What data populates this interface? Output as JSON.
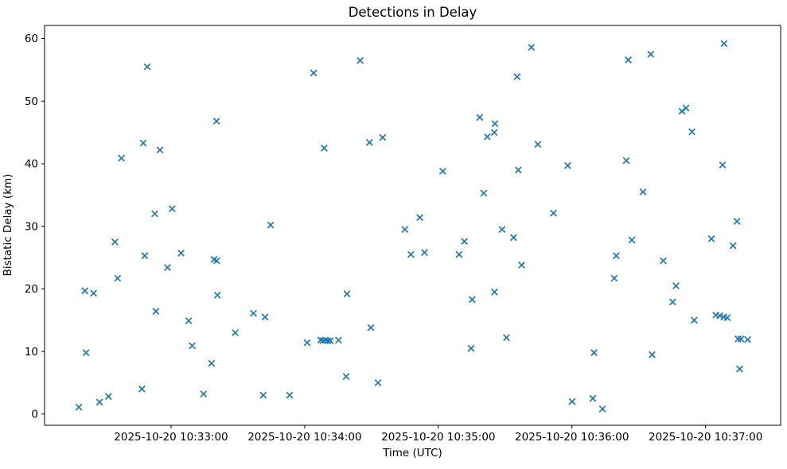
{
  "chart_data": {
    "type": "scatter",
    "title": "Detections in Delay",
    "xlabel": "Time (UTC)",
    "ylabel": "Bistatic Delay (km)",
    "marker": "x",
    "marker_color": "#1f77b4",
    "background_color": "#ffffff",
    "grid": false,
    "legend_position": "none",
    "x_axis": {
      "base_time": "2025-10-20 10:32:00",
      "unit": "seconds after base_time",
      "range": [
        3.2,
        333.7
      ],
      "ticks": [
        60,
        120,
        180,
        240,
        300
      ],
      "tick_labels": [
        "2025-10-20 10:33:00",
        "2025-10-20 10:34:00",
        "2025-10-20 10:35:00",
        "2025-10-20 10:36:00",
        "2025-10-20 10:37:00"
      ]
    },
    "y_axis": {
      "range": [
        -1.8,
        62.1
      ],
      "ticks": [
        0,
        10,
        20,
        30,
        40,
        50,
        60
      ],
      "tick_labels": [
        "0",
        "10",
        "20",
        "30",
        "40",
        "50",
        "60"
      ]
    },
    "points": [
      [
        49.3,
        55.5
      ],
      [
        80.4,
        46.8
      ],
      [
        47.5,
        43.3
      ],
      [
        55.0,
        42.2
      ],
      [
        37.7,
        40.9
      ],
      [
        52.7,
        32.0
      ],
      [
        60.5,
        32.8
      ],
      [
        104.7,
        30.2
      ],
      [
        221.8,
        58.6
      ],
      [
        144.9,
        56.5
      ],
      [
        124.0,
        54.5
      ],
      [
        215.4,
        53.9
      ],
      [
        198.6,
        47.4
      ],
      [
        205.4,
        46.4
      ],
      [
        205.1,
        45.0
      ],
      [
        202.0,
        44.3
      ],
      [
        224.7,
        43.1
      ],
      [
        155.0,
        44.2
      ],
      [
        149.1,
        43.4
      ],
      [
        128.8,
        42.5
      ],
      [
        215.9,
        39.0
      ],
      [
        182.0,
        38.8
      ],
      [
        200.4,
        35.3
      ],
      [
        171.7,
        31.4
      ],
      [
        165.0,
        29.5
      ],
      [
        208.6,
        29.5
      ],
      [
        308.3,
        59.2
      ],
      [
        275.4,
        57.5
      ],
      [
        265.3,
        56.6
      ],
      [
        289.4,
        48.4
      ],
      [
        291.2,
        48.9
      ],
      [
        293.9,
        45.1
      ],
      [
        238.1,
        39.7
      ],
      [
        264.4,
        40.5
      ],
      [
        307.6,
        39.8
      ],
      [
        271.9,
        35.5
      ],
      [
        231.7,
        32.1
      ],
      [
        314.1,
        30.8
      ],
      [
        34.8,
        27.5
      ],
      [
        48.2,
        25.3
      ],
      [
        64.5,
        25.7
      ],
      [
        58.4,
        23.4
      ],
      [
        79.3,
        24.7
      ],
      [
        80.5,
        24.5
      ],
      [
        36.0,
        21.7
      ],
      [
        21.3,
        19.7
      ],
      [
        25.2,
        19.3
      ],
      [
        80.8,
        19.0
      ],
      [
        53.2,
        16.4
      ],
      [
        67.9,
        14.9
      ],
      [
        97.0,
        16.1
      ],
      [
        102.2,
        15.5
      ],
      [
        88.8,
        13.0
      ],
      [
        69.5,
        10.9
      ],
      [
        78.2,
        8.1
      ],
      [
        21.8,
        9.8
      ],
      [
        46.9,
        4.0
      ],
      [
        31.9,
        2.8
      ],
      [
        27.9,
        1.9
      ],
      [
        18.6,
        1.1
      ],
      [
        74.6,
        3.2
      ],
      [
        101.4,
        3.0
      ],
      [
        113.2,
        3.0
      ],
      [
        191.7,
        27.6
      ],
      [
        213.8,
        28.2
      ],
      [
        167.7,
        25.5
      ],
      [
        173.8,
        25.8
      ],
      [
        189.3,
        25.5
      ],
      [
        217.4,
        23.8
      ],
      [
        139.0,
        19.2
      ],
      [
        195.2,
        18.3
      ],
      [
        205.2,
        19.5
      ],
      [
        149.7,
        13.8
      ],
      [
        121.1,
        11.4
      ],
      [
        127.2,
        11.8
      ],
      [
        128.2,
        11.7
      ],
      [
        129.3,
        11.8
      ],
      [
        130.4,
        11.7
      ],
      [
        131.5,
        11.7
      ],
      [
        135.2,
        11.8
      ],
      [
        138.6,
        6.0
      ],
      [
        152.9,
        5.0
      ],
      [
        194.7,
        10.5
      ],
      [
        210.6,
        12.2
      ],
      [
        266.9,
        27.8
      ],
      [
        302.6,
        28.0
      ],
      [
        312.3,
        26.9
      ],
      [
        259.9,
        25.3
      ],
      [
        281.0,
        24.5
      ],
      [
        259.0,
        21.7
      ],
      [
        286.7,
        20.5
      ],
      [
        285.2,
        17.9
      ],
      [
        294.9,
        15.0
      ],
      [
        304.6,
        15.8
      ],
      [
        306.4,
        15.7
      ],
      [
        308.2,
        15.5
      ],
      [
        309.8,
        15.4
      ],
      [
        314.6,
        12.0
      ],
      [
        315.9,
        12.0
      ],
      [
        318.9,
        11.9
      ],
      [
        315.3,
        7.2
      ],
      [
        249.9,
        9.8
      ],
      [
        276.0,
        9.5
      ],
      [
        240.1,
        2.0
      ],
      [
        249.4,
        2.5
      ],
      [
        253.7,
        0.8
      ]
    ]
  }
}
